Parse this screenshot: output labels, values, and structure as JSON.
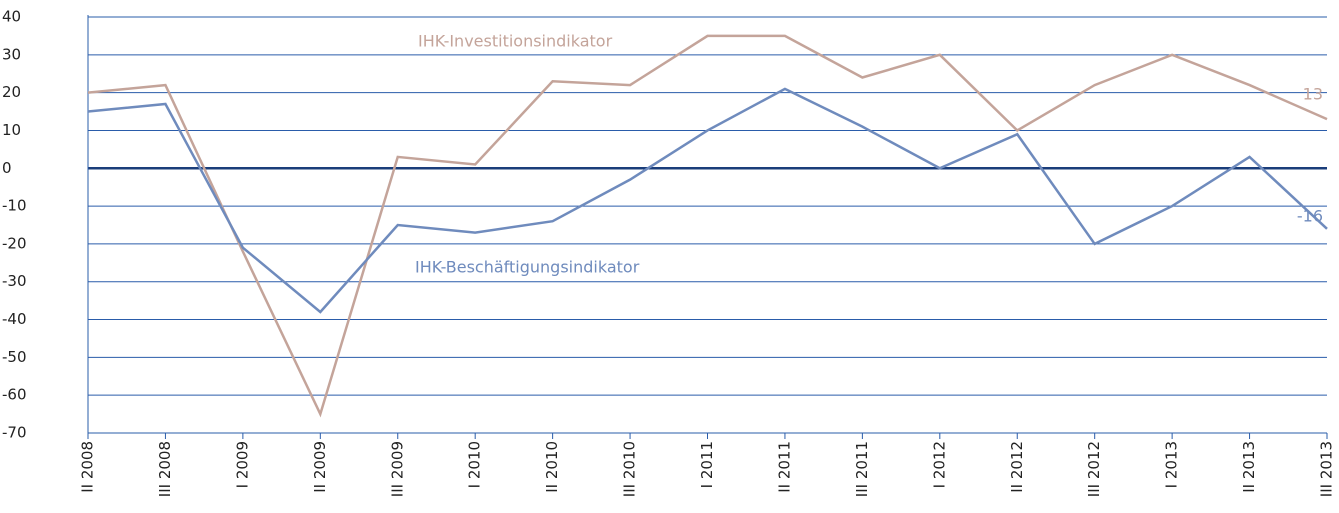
{
  "chart_data": {
    "type": "line",
    "categories": [
      "II 2008",
      "III 2008",
      "I 2009",
      "II 2009",
      "III 2009",
      "I 2010",
      "II 2010",
      "III 2010",
      "I 2011",
      "II 2011",
      "III 2011",
      "I 2012",
      "II 2012",
      "III 2012",
      "I 2013",
      "II 2013",
      "III 2013"
    ],
    "series": [
      {
        "name": "IHK-Investitionsindikator",
        "color": "#c4a49a",
        "values": [
          20,
          22,
          -22,
          -65,
          3,
          1,
          23,
          22,
          35,
          35,
          24,
          30,
          10,
          22,
          30,
          22,
          13
        ]
      },
      {
        "name": "IHK-Beschäftigungsindikator",
        "color": "#6f8bbd",
        "values": [
          15,
          17,
          -21,
          -38,
          -15,
          -17,
          -14,
          -3,
          10,
          21,
          11,
          0,
          9,
          -20,
          -10,
          3,
          -16
        ]
      }
    ],
    "ylim": [
      -70,
      40
    ],
    "yticks": [
      -70,
      -60,
      -50,
      -40,
      -30,
      -20,
      -10,
      0,
      10,
      20,
      30,
      40
    ],
    "grid": true
  }
}
